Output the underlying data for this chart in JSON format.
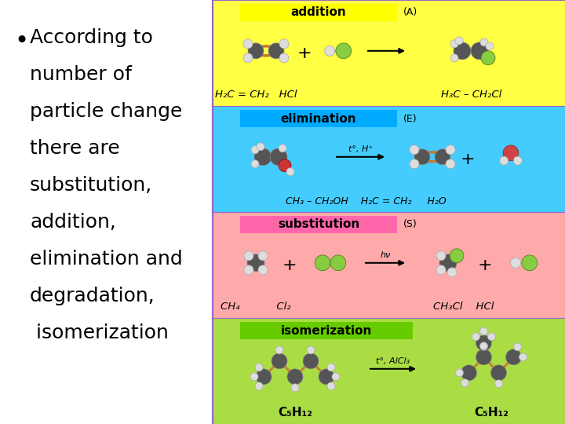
{
  "bg_color": "#ffffff",
  "bullet_text_lines": [
    "According to",
    "number of",
    "particle change",
    "there are",
    "substitution,",
    "addition,",
    "elimination and",
    "degradation,",
    " isomerization"
  ],
  "text_fontsize": 18,
  "divider_color": "#9966cc",
  "sections": [
    {
      "label": "addition",
      "label_tag": "(A)",
      "bg_color": "#ffff44",
      "label_bg_color": "#ffff00",
      "arrow_label": ""
    },
    {
      "label": "elimination",
      "label_tag": "(E)",
      "bg_color": "#44ccff",
      "label_bg_color": "#00aaff",
      "arrow_label": "t°, H⁺"
    },
    {
      "label": "substitution",
      "label_tag": "(S)",
      "bg_color": "#ffaaaa",
      "label_bg_color": "#ff66aa",
      "arrow_label": "hν"
    },
    {
      "label": "isomerization",
      "label_tag": "",
      "bg_color": "#aadd44",
      "label_bg_color": "#66cc00",
      "arrow_label": "t°, AlCl₃"
    }
  ],
  "formula_addition_left": "H₂C = CH₂   HCl",
  "formula_addition_right": "H₃C – CH₂Cl",
  "formula_elimination": "CH₃ – CH₂OH    H₂C = CH₂     H₂O",
  "formula_substitution_left": "CH₄           Cl₂",
  "formula_substitution_right": "CH₃Cl    HCl",
  "formula_isomerization_left": "C₅H₁₂",
  "formula_isomerization_right": "C₅H₁₂"
}
